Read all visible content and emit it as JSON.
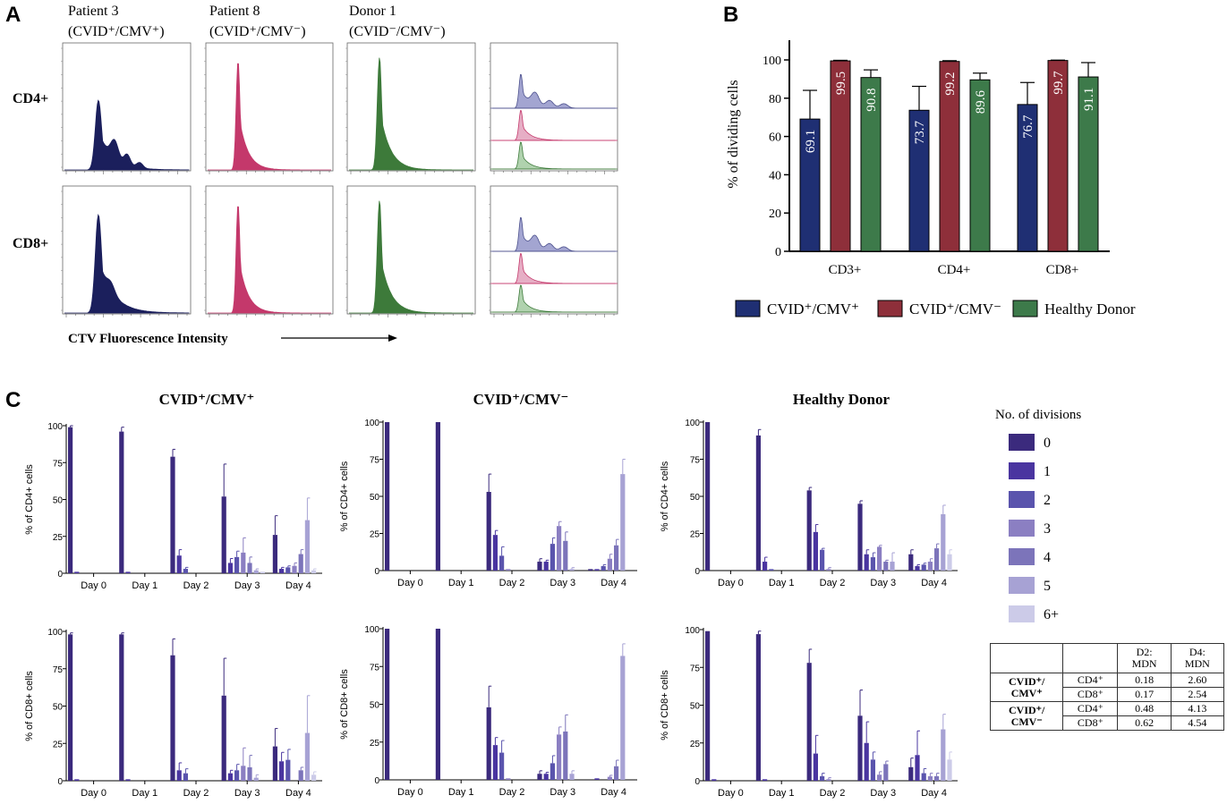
{
  "panel_letters": {
    "a": "A",
    "b": "B",
    "c": "C"
  },
  "panel_a": {
    "columns": [
      {
        "line1": "Patient 3",
        "line2": "(CVID⁺/CMV⁺)"
      },
      {
        "line1": "Patient 8",
        "line2": "(CVID⁺/CMV⁻)"
      },
      {
        "line1": "Donor 1",
        "line2": "(CVID⁻/CMV⁻)"
      }
    ],
    "rows": [
      "CD4+",
      "CD8+"
    ],
    "x_axis_label": "CTV Fluorescence Intensity",
    "colors": {
      "cvid_cmv_pos": "#1b1f5c",
      "cvid_cmv_neg": "#c4386b",
      "donor": "#3d7a3a",
      "overlay_pos": "#8c8fc6",
      "overlay_neg": "#e09ab6",
      "overlay_donor": "#9cc79a"
    }
  },
  "legend_divisions": {
    "title": "No. of divisions",
    "entries": [
      {
        "label": "0",
        "color": "#3b2a7d"
      },
      {
        "label": "1",
        "color": "#4a35a0"
      },
      {
        "label": "2",
        "color": "#5a54ad"
      },
      {
        "label": "3",
        "color": "#8b7fc2"
      },
      {
        "label": "4",
        "color": "#7c74ba"
      },
      {
        "label": "5",
        "color": "#a7a2d4"
      },
      {
        "label": "6+",
        "color": "#cccbe8"
      }
    ]
  },
  "mdn_table": {
    "header": [
      "",
      "",
      "D2:\nMDN",
      "D4:\nMDN"
    ],
    "groups": [
      {
        "name": "CVID⁺/\nCMV⁺",
        "rows": [
          [
            "CD4⁺",
            "0.18",
            "2.60"
          ],
          [
            "CD8⁺",
            "0.17",
            "2.54"
          ]
        ]
      },
      {
        "name": "CVID⁺/\nCMV⁻",
        "rows": [
          [
            "CD4⁺",
            "0.48",
            "4.13"
          ],
          [
            "CD8⁺",
            "0.62",
            "4.54"
          ]
        ]
      }
    ]
  },
  "chart_data": [
    {
      "id": "B",
      "type": "bar",
      "ylabel": "% of dividing cells",
      "ylim": [
        0,
        100
      ],
      "yticks": [
        0,
        20,
        40,
        60,
        80,
        100
      ],
      "categories": [
        "CD3+",
        "CD4+",
        "CD8+"
      ],
      "series": [
        {
          "name": "CVID⁺/CMV⁺",
          "color": "#1f2f73",
          "values": [
            69.1,
            73.7,
            76.7
          ],
          "errors": [
            15,
            12.5,
            11.5
          ],
          "labels": [
            "69.1",
            "73.7",
            "76.7"
          ]
        },
        {
          "name": "CVID⁺/CMV⁻",
          "color": "#8e2f3a",
          "values": [
            99.5,
            99.2,
            99.7
          ],
          "errors": [
            0.3,
            0.4,
            0.2
          ],
          "labels": [
            "99.5",
            "99.2",
            "99.7"
          ]
        },
        {
          "name": "Healthy Donor",
          "color": "#3d7a4a",
          "values": [
            90.8,
            89.6,
            91.1
          ],
          "errors": [
            4,
            3.5,
            7.5
          ],
          "labels": [
            "90.8",
            "89.6",
            "91.1"
          ]
        }
      ],
      "legend": [
        "CVID⁺/CMV⁺",
        "CVID⁺/CMV⁻",
        "Healthy Donor"
      ]
    },
    {
      "id": "C-cd4-pos",
      "type": "bar",
      "title": "CVID⁺/CMV⁺",
      "ylabel": "% of CD4+ cells",
      "ylim": [
        0,
        100
      ],
      "yticks": [
        "0",
        "25",
        "50",
        "75",
        "100"
      ],
      "categories": [
        "Day 0",
        "Day 1",
        "Day 2",
        "Day 3",
        "Day 4"
      ],
      "values": [
        [
          99,
          1,
          0,
          0,
          0,
          0,
          0
        ],
        [
          96,
          1,
          0,
          0,
          0,
          0,
          0
        ],
        [
          79,
          12,
          3,
          0,
          0,
          0,
          0
        ],
        [
          52,
          7,
          11,
          14,
          7,
          2,
          1
        ],
        [
          26,
          3,
          4,
          5,
          13,
          36,
          2
        ]
      ],
      "errors": [
        [
          1,
          0,
          0,
          0,
          0,
          0,
          0
        ],
        [
          3,
          0,
          0,
          0,
          0,
          0,
          0
        ],
        [
          5,
          4,
          1,
          0,
          0,
          0,
          0
        ],
        [
          22,
          3,
          4,
          10,
          4,
          1,
          0
        ],
        [
          13,
          1,
          1,
          2,
          3,
          15,
          1
        ]
      ]
    },
    {
      "id": "C-cd4-neg",
      "type": "bar",
      "title": "CVID⁺/CMV⁻",
      "ylabel": "% of CD4+ cells",
      "ylim": [
        0,
        100
      ],
      "yticks": [
        "0",
        "25",
        "50",
        "75",
        "100"
      ],
      "categories": [
        "Day 0",
        "Day 1",
        "Day 2",
        "Day 3",
        "Day 4"
      ],
      "values": [
        [
          100,
          0,
          0,
          0,
          0,
          0,
          0
        ],
        [
          100,
          0,
          0,
          0,
          0,
          0,
          0
        ],
        [
          53,
          24,
          10,
          1,
          0,
          0,
          0
        ],
        [
          6,
          6,
          18,
          30,
          20,
          1,
          0
        ],
        [
          1,
          1,
          3,
          8,
          17,
          65,
          0
        ]
      ],
      "errors": [
        [
          0,
          0,
          0,
          0,
          0,
          0,
          0
        ],
        [
          0,
          0,
          0,
          0,
          0,
          0,
          0
        ],
        [
          12,
          3,
          6,
          0,
          0,
          0,
          0
        ],
        [
          2,
          1,
          4,
          3,
          6,
          1,
          0
        ],
        [
          0,
          0,
          1,
          3,
          4,
          10,
          0
        ]
      ]
    },
    {
      "id": "C-cd4-donor",
      "type": "bar",
      "title": "Healthy Donor",
      "ylabel": "% of CD4+ cells",
      "ylim": [
        0,
        100
      ],
      "yticks": [
        "0",
        "25",
        "50",
        "75",
        "100"
      ],
      "categories": [
        "Day 0",
        "Day 1",
        "Day 2",
        "Day 3",
        "Day 4"
      ],
      "values": [
        [
          100,
          0,
          0,
          0,
          0,
          0,
          0
        ],
        [
          91,
          6,
          1,
          0,
          0,
          0,
          0
        ],
        [
          54,
          26,
          14,
          1,
          0,
          0,
          0
        ],
        [
          45,
          11,
          9,
          16,
          6,
          6,
          0
        ],
        [
          11,
          3,
          4,
          6,
          15,
          38,
          11
        ]
      ],
      "errors": [
        [
          0,
          0,
          0,
          0,
          0,
          0,
          0
        ],
        [
          4,
          3,
          0,
          0,
          0,
          0,
          0
        ],
        [
          2,
          5,
          1,
          1,
          0,
          0,
          0
        ],
        [
          2,
          3,
          3,
          1,
          1,
          6,
          0
        ],
        [
          3,
          1,
          1,
          2,
          3,
          6,
          3
        ]
      ]
    },
    {
      "id": "C-cd8-pos",
      "type": "bar",
      "ylabel": "% of CD8+ cells",
      "ylim": [
        0,
        100
      ],
      "yticks": [
        "0",
        "25",
        "50",
        "75",
        "100"
      ],
      "categories": [
        "Day 0",
        "Day 1",
        "Day 2",
        "Day 3",
        "Day 4"
      ],
      "values": [
        [
          98,
          1,
          0,
          0,
          0,
          0,
          0
        ],
        [
          98,
          1,
          0,
          0,
          0,
          0,
          0
        ],
        [
          84,
          7,
          5,
          0,
          0,
          0,
          0
        ],
        [
          57,
          5,
          7,
          10,
          9,
          2,
          0
        ],
        [
          23,
          13,
          14,
          0,
          7,
          32,
          4
        ]
      ],
      "errors": [
        [
          1,
          0,
          0,
          0,
          0,
          0,
          0
        ],
        [
          1,
          0,
          0,
          0,
          0,
          0,
          0
        ],
        [
          11,
          5,
          3,
          0,
          0,
          0,
          0
        ],
        [
          25,
          2,
          4,
          12,
          8,
          2,
          0
        ],
        [
          12,
          6,
          7,
          0,
          2,
          25,
          2
        ]
      ]
    },
    {
      "id": "C-cd8-neg",
      "type": "bar",
      "ylabel": "% of CD8+ cells",
      "ylim": [
        0,
        100
      ],
      "yticks": [
        "0",
        "25",
        "50",
        "75",
        "100"
      ],
      "categories": [
        "Day 0",
        "Day 1",
        "Day 2",
        "Day 3",
        "Day 4"
      ],
      "values": [
        [
          100,
          0,
          0,
          0,
          0,
          0,
          0
        ],
        [
          100,
          0,
          0,
          0,
          0,
          0,
          0
        ],
        [
          48,
          23,
          18,
          1,
          0,
          0,
          0
        ],
        [
          4,
          4,
          11,
          30,
          32,
          4,
          0
        ],
        [
          0,
          1,
          0,
          2,
          9,
          82,
          0
        ]
      ],
      "errors": [
        [
          0,
          0,
          0,
          0,
          0,
          0,
          0
        ],
        [
          0,
          0,
          0,
          0,
          0,
          0,
          0
        ],
        [
          14,
          5,
          8,
          0,
          0,
          0,
          0
        ],
        [
          2,
          1,
          5,
          5,
          11,
          2,
          0
        ],
        [
          0,
          0,
          0,
          1,
          4,
          8,
          0
        ]
      ]
    },
    {
      "id": "C-cd8-donor",
      "type": "bar",
      "ylabel": "% of CD8+ cells",
      "ylim": [
        0,
        100
      ],
      "yticks": [
        "0",
        "25",
        "50",
        "75",
        "100"
      ],
      "categories": [
        "Day 0",
        "Day 1",
        "Day 2",
        "Day 3",
        "Day 4"
      ],
      "values": [
        [
          99,
          1,
          0,
          0,
          0,
          0,
          0
        ],
        [
          97,
          1,
          0,
          0,
          0,
          0,
          0
        ],
        [
          78,
          18,
          3,
          1,
          0,
          0,
          0
        ],
        [
          43,
          25,
          14,
          4,
          11,
          0,
          0
        ],
        [
          9,
          17,
          5,
          3,
          3,
          34,
          14
        ]
      ],
      "errors": [
        [
          0,
          0,
          0,
          0,
          0,
          0,
          0
        ],
        [
          2,
          0,
          0,
          0,
          0,
          0,
          0
        ],
        [
          9,
          12,
          2,
          1,
          0,
          0,
          0
        ],
        [
          17,
          14,
          5,
          2,
          2,
          0,
          0
        ],
        [
          6,
          16,
          3,
          2,
          2,
          10,
          5
        ]
      ]
    }
  ]
}
